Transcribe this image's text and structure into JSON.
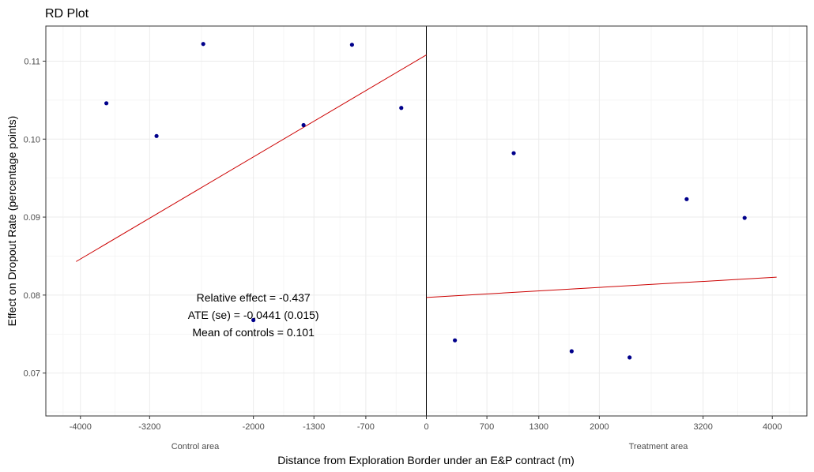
{
  "chart_data": {
    "type": "scatter",
    "title": "RD Plot",
    "xlabel": "Distance from Exploration Border under an E&P contract (m)",
    "ylabel": "Effect on Dropout Rate (percentage points)",
    "xlim": [
      -4400,
      4400
    ],
    "ylim": [
      0.0645,
      0.1145
    ],
    "x_ticks": [
      -4000,
      -3200,
      -2000,
      -1300,
      -700,
      0,
      700,
      1300,
      2000,
      3200,
      4000
    ],
    "x_tick_labels": [
      "-4000",
      "-3200",
      "-2000",
      "-1300",
      "-700",
      "0",
      "700",
      "1300",
      "2000",
      "3200",
      "4000"
    ],
    "y_ticks": [
      0.07,
      0.08,
      0.09,
      0.1,
      0.11
    ],
    "y_tick_labels": [
      "0.07",
      "0.08",
      "0.09",
      "0.10",
      "0.11"
    ],
    "cutoff": 0,
    "grid": true,
    "point_color": "#00008b",
    "fit_color": "#cc0000",
    "region_labels": [
      "Control area",
      "Treatment area"
    ],
    "points": [
      {
        "x": -3700,
        "y": 0.1046
      },
      {
        "x": -3120,
        "y": 0.1004
      },
      {
        "x": -2580,
        "y": 0.1122
      },
      {
        "x": -2000,
        "y": 0.0768
      },
      {
        "x": -1420,
        "y": 0.1018
      },
      {
        "x": -860,
        "y": 0.1121
      },
      {
        "x": -290,
        "y": 0.104
      },
      {
        "x": 330,
        "y": 0.0742
      },
      {
        "x": 1010,
        "y": 0.0982
      },
      {
        "x": 1680,
        "y": 0.0728
      },
      {
        "x": 2350,
        "y": 0.072
      },
      {
        "x": 3010,
        "y": 0.0923
      },
      {
        "x": 3680,
        "y": 0.0899
      }
    ],
    "fit_lines": [
      {
        "x": [
          -4050,
          0
        ],
        "y": [
          0.0843,
          0.1108
        ]
      },
      {
        "x": [
          0,
          4050
        ],
        "y": [
          0.0797,
          0.0823
        ]
      }
    ],
    "annotation": [
      "Relative effect = -0.437",
      "ATE (se) = -0.0441 (0.015)",
      "Mean of controls = 0.101"
    ],
    "annotation_anchor": {
      "x": -2000,
      "y": 0.0792
    }
  }
}
